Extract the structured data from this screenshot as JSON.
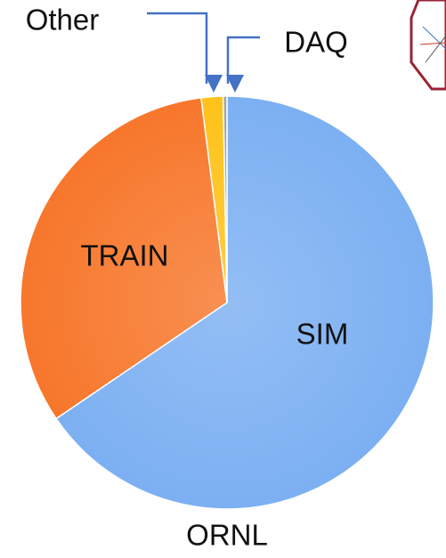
{
  "chart_data": {
    "type": "pie",
    "title": "ORNL",
    "categories": [
      "SIM",
      "TRAIN",
      "Other",
      "DAQ"
    ],
    "values": [
      65.5,
      32.5,
      1.7,
      0.3
    ],
    "colors": [
      "#7cb0f2",
      "#f7772b",
      "#ffc21a",
      "#a5a5a5"
    ]
  }
}
